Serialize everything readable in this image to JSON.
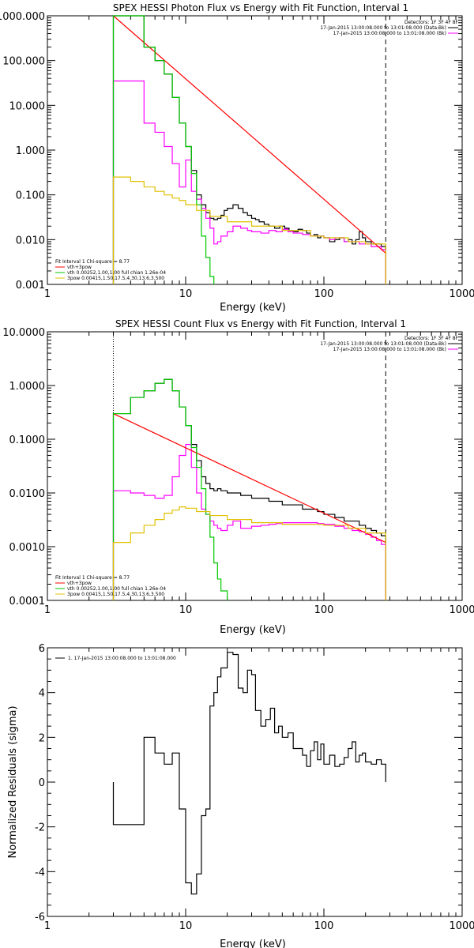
{
  "chart_data": [
    {
      "type": "line",
      "title": "SPEX HESSI Photon Flux vs Energy with Fit Function, Interval 1",
      "xlabel": "Energy (keV)",
      "ylabel": "",
      "xscale": "log",
      "yscale": "log",
      "xlim": [
        1,
        1000
      ],
      "ylim": [
        0.001,
        1000
      ],
      "xtick_labels": [
        "1",
        "10",
        "100",
        "1000"
      ],
      "ytick_values": [
        0.001,
        0.01,
        0.1,
        1,
        10,
        100,
        1000
      ],
      "ytick_labels": [
        "0.001",
        "0.010",
        "0.100",
        "1.000",
        "10.000",
        "100.000",
        "1000.000"
      ],
      "vlines": [
        {
          "x": 3,
          "style": "dotted"
        },
        {
          "x": 280,
          "style": "dashed"
        }
      ],
      "header": [
        "Detectors: 1F 3F 4F 8F",
        "17-Jan-2015 13:00:08.000 to 13:01:08.000 (Data-Bk)",
        "17-Jan-2015 13:00:08.000 to 13:01:08.000 (Bk)"
      ],
      "fit_info": [
        "Fit Interval 1    Chi-square = 8.77",
        "vth+3pow",
        "vth 0.00252,1.00,1.00  full chian 1.26e-04",
        "3pow 0.00415,1.50,17.5,4.30,13.6,3.500"
      ],
      "series": [
        {
          "name": "Data-Bk",
          "color": "#000000",
          "x": [
            3,
            4,
            5,
            6,
            7,
            8,
            9,
            10,
            11,
            12,
            13,
            14,
            15,
            16,
            17,
            18,
            19,
            20,
            22,
            24,
            26,
            28,
            30,
            32,
            34,
            37,
            40,
            44,
            48,
            52,
            56,
            60,
            65,
            70,
            75,
            80,
            85,
            90,
            95,
            100,
            110,
            120,
            130,
            140,
            150,
            160,
            170,
            180,
            190,
            200,
            220,
            240,
            260,
            280
          ],
          "y": [
            1000,
            1000,
            200,
            100,
            50,
            15,
            4,
            1.2,
            0.35,
            0.1,
            0.06,
            0.04,
            0.03,
            0.028,
            0.03,
            0.035,
            0.045,
            0.05,
            0.06,
            0.05,
            0.04,
            0.035,
            0.03,
            0.028,
            0.025,
            0.022,
            0.02,
            0.018,
            0.02,
            0.018,
            0.016,
            0.015,
            0.017,
            0.016,
            0.014,
            0.012,
            0.013,
            0.011,
            0.012,
            0.011,
            0.009,
            0.01,
            0.011,
            0.009,
            0.01,
            0.008,
            0.01,
            0.015,
            0.011,
            0.009,
            0.008,
            0.008,
            0.007,
            0.006
          ]
        },
        {
          "name": "Bk",
          "color": "#ff00ff",
          "x": [
            3,
            4,
            5,
            6,
            7,
            8,
            9,
            10,
            11,
            12,
            13,
            14,
            15,
            16,
            17,
            18,
            20,
            22,
            25,
            28,
            30,
            35,
            40,
            45,
            50,
            55,
            60,
            70,
            80,
            90,
            100,
            110,
            120,
            140,
            160,
            180,
            200,
            220,
            240,
            260,
            280
          ],
          "y": [
            35,
            35,
            4,
            2.5,
            1.2,
            0.5,
            0.15,
            0.6,
            0.12,
            0.08,
            0.05,
            0.03,
            0.018,
            0.008,
            0.009,
            0.012,
            0.015,
            0.02,
            0.018,
            0.016,
            0.015,
            0.014,
            0.016,
            0.015,
            0.017,
            0.015,
            0.014,
            0.013,
            0.012,
            0.012,
            0.011,
            0.01,
            0.011,
            0.009,
            0.009,
            0.008,
            0.008,
            0.007,
            0.007,
            0.006,
            0.005
          ]
        },
        {
          "name": "vth+3pow",
          "color": "#ff0000",
          "x": [
            3,
            280
          ],
          "y": [
            1000,
            0.005
          ]
        },
        {
          "name": "vth",
          "color": "#00c800",
          "x": [
            3,
            4,
            5,
            6,
            7,
            8,
            9,
            10,
            11,
            12,
            13,
            14,
            15,
            16
          ],
          "y": [
            1000,
            1000,
            200,
            100,
            50,
            15,
            4,
            1.2,
            0.3,
            0.06,
            0.012,
            0.004,
            0.0015,
            0.001
          ]
        },
        {
          "name": "3pow",
          "color": "#e0c000",
          "x": [
            3,
            4,
            5,
            6,
            7,
            8,
            9,
            10,
            12,
            15,
            20,
            30,
            50,
            80,
            100,
            150,
            200,
            280
          ],
          "y": [
            0.25,
            0.2,
            0.15,
            0.12,
            0.1,
            0.085,
            0.075,
            0.06,
            0.045,
            0.033,
            0.025,
            0.02,
            0.016,
            0.012,
            0.011,
            0.009,
            0.008,
            0.0055
          ]
        }
      ],
      "legend": [
        {
          "label": "Fit Interval 1    Chi-square = 8.77",
          "color": ""
        },
        {
          "label": "vth+3pow",
          "color": "#ff0000"
        },
        {
          "label": "vth 0.00252,1.00,1.00  full chian 1.26e-04",
          "color": "#00c800"
        },
        {
          "label": "3pow 0.00415,1.50,17.5,4.30,13.6,3.500",
          "color": "#e0c000"
        }
      ],
      "header_legend": [
        {
          "label": "Detectors: 1F 3F 4F 8F",
          "color": ""
        },
        {
          "label": "17-Jan-2015 13:00:08.000 to 13:01:08.000 (Data-Bk)",
          "color": "#000000"
        },
        {
          "label": "17-Jan-2015 13:00:08.000 to 13:01:08.000 (Bk)",
          "color": "#ff00ff"
        }
      ]
    },
    {
      "type": "line",
      "title": "SPEX HESSI Count Flux vs Energy with Fit Function, Interval 1",
      "xlabel": "Energy (keV)",
      "ylabel": "",
      "xscale": "log",
      "yscale": "log",
      "xlim": [
        1,
        1000
      ],
      "ylim": [
        0.0001,
        10
      ],
      "xtick_labels": [
        "1",
        "10",
        "100",
        "1000"
      ],
      "ytick_values": [
        0.0001,
        0.001,
        0.01,
        0.1,
        1,
        10
      ],
      "ytick_labels": [
        "0.0001",
        "0.0010",
        "0.0100",
        "0.1000",
        "1.0000",
        "10.0000"
      ],
      "vlines": [
        {
          "x": 3,
          "style": "dotted"
        },
        {
          "x": 280,
          "style": "dashed"
        }
      ],
      "header": [
        "Detectors: 1F 3F 4F 8F",
        "17-Jan-2015 13:00:08.000 to 13:01:08.000 (Data-Bk)",
        "17-Jan-2015 13:00:08.000 to 13:01:08.000 (Bk)"
      ],
      "fit_info": [
        "Fit Interval 1    Chi-square = 8.77",
        "vth+3pow",
        "vth 0.00252,1.00,1.00  full chian 1.26e-04",
        "3pow 0.00415,1.50,17.5,4.30,13.6,3.500"
      ],
      "series": [
        {
          "name": "Data-Bk",
          "color": "#000000",
          "x": [
            3,
            4,
            5,
            6,
            7,
            8,
            9,
            10,
            11,
            12,
            13,
            14,
            15,
            16,
            17,
            18,
            20,
            22,
            25,
            28,
            30,
            35,
            40,
            45,
            50,
            55,
            60,
            70,
            80,
            90,
            100,
            110,
            120,
            140,
            160,
            180,
            200,
            220,
            240,
            260,
            280
          ],
          "y": [
            0.3,
            0.6,
            0.8,
            1.1,
            1.3,
            0.8,
            0.4,
            0.18,
            0.08,
            0.04,
            0.02,
            0.015,
            0.012,
            0.011,
            0.012,
            0.011,
            0.01,
            0.01,
            0.009,
            0.009,
            0.008,
            0.008,
            0.007,
            0.007,
            0.006,
            0.006,
            0.006,
            0.005,
            0.005,
            0.0045,
            0.004,
            0.004,
            0.0035,
            0.003,
            0.003,
            0.0025,
            0.0022,
            0.002,
            0.0018,
            0.0016,
            0.0014
          ]
        },
        {
          "name": "Bk",
          "color": "#ff00ff",
          "x": [
            3,
            4,
            5,
            6,
            7,
            8,
            9,
            10,
            11,
            12,
            13,
            14,
            15,
            16,
            17,
            18,
            20,
            22,
            25,
            28,
            30,
            35,
            40,
            45,
            50,
            60,
            70,
            80,
            90,
            100,
            120,
            140,
            160,
            180,
            200,
            220,
            240,
            260,
            280
          ],
          "y": [
            0.011,
            0.01,
            0.009,
            0.008,
            0.009,
            0.02,
            0.05,
            0.08,
            0.03,
            0.01,
            0.005,
            0.004,
            0.003,
            0.0025,
            0.0022,
            0.002,
            0.0025,
            0.003,
            0.0022,
            0.0022,
            0.0024,
            0.0025,
            0.0026,
            0.0027,
            0.0028,
            0.0028,
            0.0028,
            0.0028,
            0.0027,
            0.0026,
            0.0024,
            0.0022,
            0.002,
            0.0019,
            0.0017,
            0.0015,
            0.0013,
            0.0011,
            0.0009
          ]
        },
        {
          "name": "vth+3pow",
          "color": "#ff0000",
          "x": [
            3,
            280
          ],
          "y": [
            0.3,
            0.0012
          ]
        },
        {
          "name": "vth",
          "color": "#00c800",
          "x": [
            3,
            4,
            5,
            6,
            7,
            8,
            9,
            10,
            11,
            12,
            13,
            14,
            15,
            16,
            17,
            18,
            20
          ],
          "y": [
            0.3,
            0.6,
            0.8,
            1.1,
            1.3,
            0.8,
            0.4,
            0.18,
            0.07,
            0.03,
            0.012,
            0.004,
            0.0015,
            0.0005,
            0.00025,
            0.00015,
            0.0001
          ]
        },
        {
          "name": "3pow",
          "color": "#e0c000",
          "x": [
            3,
            4,
            5,
            6,
            7,
            8,
            9,
            10,
            12,
            15,
            20,
            30,
            50,
            80,
            100,
            150,
            200,
            280
          ],
          "y": [
            0.0012,
            0.0018,
            0.0025,
            0.0032,
            0.0042,
            0.0048,
            0.0055,
            0.0052,
            0.0045,
            0.0038,
            0.0032,
            0.0028,
            0.0026,
            0.0026,
            0.0025,
            0.0022,
            0.0018,
            0.0011
          ]
        }
      ],
      "legend": [
        {
          "label": "Fit Interval 1    Chi-square = 8.77",
          "color": ""
        },
        {
          "label": "vth+3pow",
          "color": "#ff0000"
        },
        {
          "label": "vth 0.00252,1.00,1.00  full chian 1.26e-04",
          "color": "#00c800"
        },
        {
          "label": "3pow 0.00415,1.50,17.5,4.30,13.6,3.500",
          "color": "#e0c000"
        }
      ],
      "header_legend": [
        {
          "label": "Detectors: 1F 3F 4F 8F",
          "color": ""
        },
        {
          "label": "17-Jan-2015 13:00:08.000 to 13:01:08.000 (Data-Bk)",
          "color": "#000000"
        },
        {
          "label": "17-Jan-2015 13:00:08.000 to 13:01:08.000 (Bk)",
          "color": "#ff00ff"
        }
      ]
    },
    {
      "type": "line",
      "title": "",
      "xlabel": "Energy (keV)",
      "ylabel": "Normalized Residuals (sigma)",
      "xscale": "log",
      "yscale": "linear",
      "xlim": [
        1,
        1000
      ],
      "ylim": [
        -6,
        6
      ],
      "xtick_labels": [
        "1",
        "10",
        "100",
        "1000"
      ],
      "ytick_values": [
        -6,
        -4,
        -2,
        0,
        2,
        4,
        6
      ],
      "ytick_labels": [
        "-6",
        "-4",
        "-2",
        "0",
        "2",
        "4",
        "6"
      ],
      "legend": [
        {
          "label": "1. 17-Jan-2015 13:00:08.000 to 13:01:08.000",
          "color": "#000000"
        }
      ],
      "series": [
        {
          "name": "1. 17-Jan-2015 13:00:08.000 to 13:01:08.000",
          "color": "#000000",
          "x": [
            3,
            4,
            5,
            6,
            7,
            8,
            9,
            10,
            11,
            12,
            13,
            14,
            15,
            16,
            17,
            18,
            20,
            22,
            24,
            26,
            28,
            30,
            32,
            35,
            38,
            41,
            44,
            47,
            50,
            55,
            60,
            65,
            70,
            75,
            80,
            85,
            90,
            95,
            100,
            110,
            120,
            130,
            140,
            150,
            160,
            170,
            180,
            190,
            200,
            220,
            240,
            260,
            280
          ],
          "y": [
            -1.9,
            -1.9,
            2.0,
            1.3,
            0.8,
            1.3,
            -1.2,
            -4.5,
            -5.0,
            -4.1,
            -1.5,
            -1.2,
            3.4,
            4.0,
            4.7,
            5.1,
            5.8,
            5.7,
            4.2,
            4.0,
            5.0,
            4.8,
            3.2,
            2.5,
            2.8,
            3.3,
            2.2,
            2.5,
            2.0,
            2.2,
            1.5,
            1.5,
            1.2,
            0.7,
            1.4,
            1.8,
            1.0,
            1.7,
            0.8,
            1.2,
            0.7,
            0.8,
            1.1,
            1.5,
            1.8,
            0.9,
            1.2,
            1.3,
            0.9,
            0.8,
            1.0,
            0.8,
            0.8
          ]
        }
      ]
    }
  ]
}
